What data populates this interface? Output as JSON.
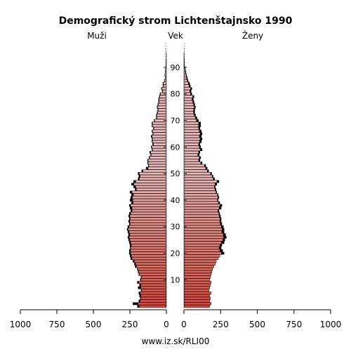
{
  "chart_data": {
    "type": "bar",
    "title": "Demografický strom Lichtenštajnsko 1990",
    "left_label": "Muži",
    "center_label": "Vek",
    "right_label": "Ženy",
    "source": "www.iz.sk/RLI00",
    "age_ticks": [
      10,
      20,
      30,
      40,
      50,
      60,
      70,
      80,
      90
    ],
    "x_ticks_left": [
      "1000",
      "750",
      "500",
      "250",
      "0"
    ],
    "x_ticks_right": [
      "0",
      "250",
      "500",
      "750",
      "1000"
    ],
    "xlim": [
      0,
      1000
    ],
    "ages": [
      0,
      1,
      2,
      3,
      4,
      5,
      6,
      7,
      8,
      9,
      10,
      11,
      12,
      13,
      14,
      15,
      16,
      17,
      18,
      19,
      20,
      21,
      22,
      23,
      24,
      25,
      26,
      27,
      28,
      29,
      30,
      31,
      32,
      33,
      34,
      35,
      36,
      37,
      38,
      39,
      40,
      41,
      42,
      43,
      44,
      45,
      46,
      47,
      48,
      49,
      50,
      51,
      52,
      53,
      54,
      55,
      56,
      57,
      58,
      59,
      60,
      61,
      62,
      63,
      64,
      65,
      66,
      67,
      68,
      69,
      70,
      71,
      72,
      73,
      74,
      75,
      76,
      77,
      78,
      79,
      80,
      81,
      82,
      83,
      84,
      85,
      86,
      87,
      88,
      89,
      90,
      91,
      92,
      93,
      94,
      95,
      96,
      97,
      98,
      99
    ],
    "series": [
      {
        "name": "Muži",
        "values": [
          200,
          230,
          190,
          180,
          185,
          190,
          175,
          195,
          185,
          200,
          180,
          175,
          190,
          195,
          200,
          215,
          220,
          230,
          245,
          250,
          255,
          255,
          250,
          250,
          255,
          260,
          265,
          260,
          265,
          270,
          265,
          255,
          260,
          255,
          260,
          255,
          245,
          250,
          255,
          240,
          250,
          245,
          240,
          250,
          215,
          225,
          240,
          225,
          195,
          190,
          195,
          170,
          140,
          125,
          130,
          130,
          120,
          110,
          115,
          100,
          105,
          95,
          100,
          100,
          105,
          95,
          100,
          90,
          100,
          100,
          85,
          70,
          70,
          65,
          60,
          65,
          60,
          55,
          55,
          50,
          45,
          30,
          35,
          25,
          25,
          15,
          10,
          12,
          8,
          8,
          5,
          4,
          3,
          2,
          2,
          1,
          1,
          1,
          0,
          0
        ],
        "excess_values": [
          185,
          195,
          180,
          175,
          175,
          180,
          170,
          175,
          175,
          190,
          175,
          170,
          185,
          190,
          195,
          205,
          210,
          220,
          235,
          240,
          245,
          245,
          245,
          240,
          245,
          250,
          255,
          250,
          255,
          262,
          255,
          248,
          250,
          248,
          250,
          245,
          235,
          235,
          245,
          228,
          230,
          232,
          225,
          235,
          205,
          210,
          222,
          210,
          185,
          180,
          185,
          160,
          125,
          120,
          125,
          125,
          115,
          105,
          108,
          95,
          100,
          88,
          95,
          95,
          98,
          90,
          95,
          85,
          95,
          95,
          80,
          65,
          65,
          60,
          55,
          60,
          55,
          50,
          50,
          45,
          40,
          25,
          30,
          20,
          20,
          12,
          8,
          10,
          6,
          6,
          4,
          3,
          2,
          1,
          1,
          1,
          0,
          0,
          0,
          0
        ]
      },
      {
        "name": "Ženy",
        "values": [
          175,
          185,
          175,
          180,
          175,
          185,
          170,
          175,
          180,
          185,
          175,
          180,
          185,
          190,
          195,
          205,
          215,
          220,
          235,
          245,
          275,
          265,
          255,
          260,
          275,
          280,
          290,
          285,
          275,
          275,
          270,
          260,
          255,
          255,
          250,
          245,
          240,
          255,
          260,
          245,
          235,
          240,
          235,
          225,
          220,
          215,
          225,
          240,
          210,
          200,
          190,
          170,
          160,
          150,
          125,
          110,
          115,
          105,
          110,
          125,
          115,
          110,
          120,
          125,
          120,
          125,
          120,
          110,
          115,
          115,
          100,
          90,
          80,
          75,
          75,
          80,
          75,
          70,
          65,
          70,
          55,
          50,
          55,
          45,
          40,
          30,
          25,
          20,
          15,
          12,
          8,
          5,
          4,
          3,
          2,
          2,
          1,
          1,
          0,
          0
        ],
        "excess_values": [
          175,
          185,
          175,
          180,
          175,
          185,
          170,
          175,
          180,
          185,
          175,
          180,
          185,
          190,
          195,
          205,
          215,
          220,
          235,
          245,
          255,
          245,
          240,
          245,
          255,
          265,
          270,
          268,
          258,
          260,
          255,
          248,
          245,
          245,
          240,
          238,
          232,
          240,
          245,
          235,
          228,
          232,
          228,
          218,
          212,
          208,
          212,
          225,
          200,
          192,
          180,
          160,
          148,
          140,
          115,
          100,
          105,
          95,
          100,
          110,
          105,
          100,
          105,
          110,
          105,
          110,
          105,
          100,
          100,
          100,
          85,
          78,
          70,
          65,
          65,
          70,
          65,
          60,
          55,
          60,
          45,
          40,
          45,
          35,
          30,
          22,
          18,
          15,
          10,
          8,
          5,
          3,
          2,
          2,
          1,
          1,
          0,
          0,
          0,
          0
        ]
      }
    ],
    "colors": {
      "bar_young": "#d9483a",
      "bar_old": "#e9b8b8",
      "excess": "#000000",
      "outline": "#000000"
    }
  }
}
